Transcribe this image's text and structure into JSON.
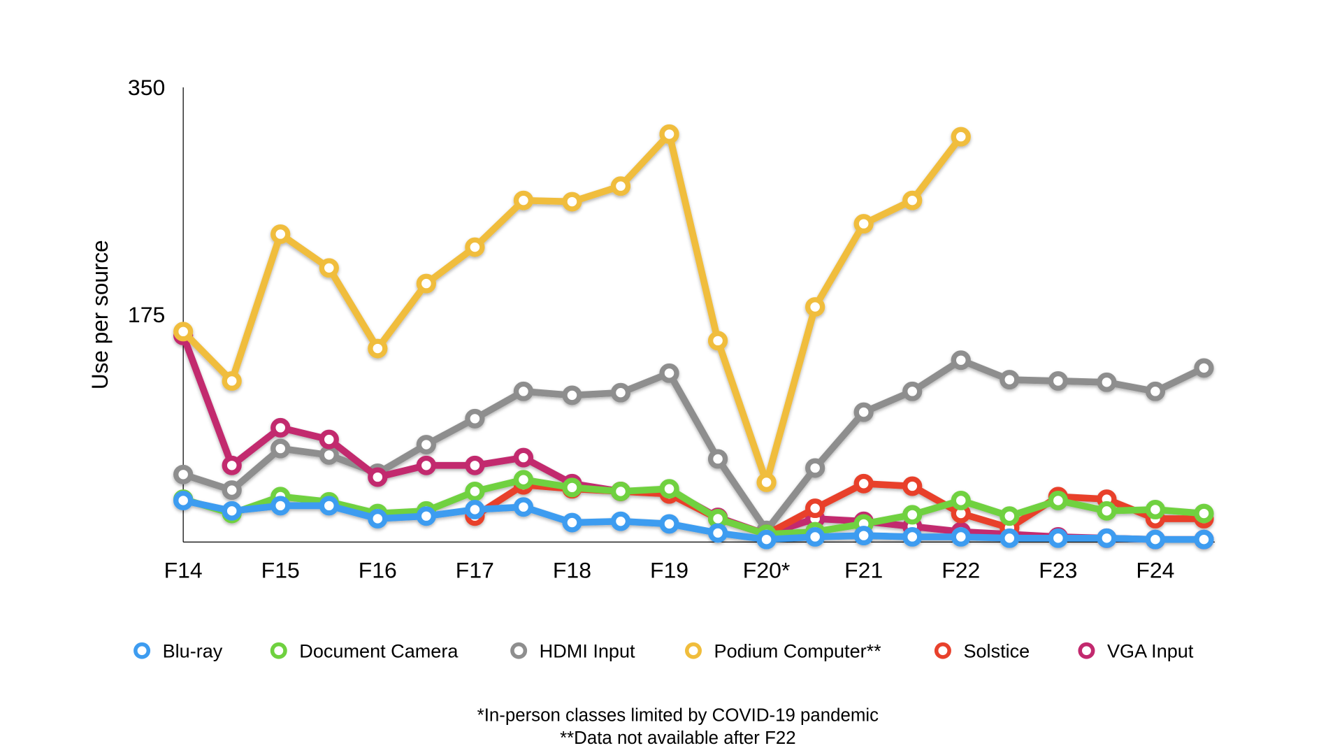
{
  "chart_data": {
    "type": "line",
    "ylabel": "Use per source",
    "ylim": [
      0,
      350
    ],
    "yticks": [
      "350",
      "175"
    ],
    "ytick_values": [
      350,
      175
    ],
    "xtick_labels": [
      "F14",
      "F15",
      "F16",
      "F17",
      "F18",
      "F19",
      "F20*",
      "F21",
      "F22",
      "F23",
      "F24"
    ],
    "x": [
      "F14",
      "S15",
      "F15",
      "S16",
      "F16",
      "S17",
      "F17",
      "S18",
      "F18",
      "S19",
      "F19",
      "S20",
      "F20*",
      "S21",
      "F21",
      "S22",
      "F22",
      "S23",
      "F23",
      "S24",
      "F24",
      "S25"
    ],
    "grid": false,
    "legend": "bottom",
    "series": [
      {
        "name": "HDMI Input",
        "color": "#8e8e8e",
        "values": [
          52,
          40,
          72,
          67,
          53,
          75,
          95,
          116,
          113,
          115,
          130,
          64,
          9,
          57,
          100,
          116,
          140,
          125,
          124,
          123,
          116,
          134
        ]
      },
      {
        "name": "VGA Input",
        "color": "#c2296e",
        "values": [
          159,
          59,
          88,
          79,
          50,
          59,
          59,
          65,
          45,
          39,
          40,
          19,
          6,
          18,
          16,
          12,
          8,
          6,
          4,
          3,
          2,
          2
        ]
      },
      {
        "name": "Solstice",
        "color": "#e8412c",
        "values": [
          null,
          null,
          null,
          null,
          null,
          null,
          20,
          44,
          41,
          39,
          37,
          18,
          6,
          26,
          45,
          43,
          22,
          11,
          35,
          33,
          18,
          18
        ]
      },
      {
        "name": "Document Camera",
        "color": "#6fd13f",
        "values": [
          33,
          22,
          35,
          31,
          22,
          24,
          39,
          48,
          42,
          39,
          41,
          18,
          6,
          8,
          14,
          21,
          32,
          20,
          32,
          24,
          25,
          22
        ]
      },
      {
        "name": "Blu-ray",
        "color": "#3d9cf0",
        "values": [
          32,
          24,
          28,
          28,
          18,
          20,
          25,
          27,
          15,
          16,
          14,
          7,
          2,
          4,
          5,
          4,
          4,
          3,
          3,
          3,
          2,
          2
        ]
      },
      {
        "name": "Podium Computer**",
        "color": "#f0bd3c",
        "values": [
          162,
          124,
          237,
          211,
          149,
          199,
          227,
          263,
          262,
          274,
          314,
          155,
          46,
          181,
          245,
          263,
          312,
          null,
          null,
          null,
          null,
          null
        ]
      }
    ],
    "legend_order": [
      "Blu-ray",
      "Document Camera",
      "HDMI Input",
      "Podium Computer**",
      "Solstice",
      "VGA Input"
    ],
    "annotations": [
      "*In-person classes limited by COVID-19 pandemic",
      "**Data not available after F22"
    ]
  }
}
